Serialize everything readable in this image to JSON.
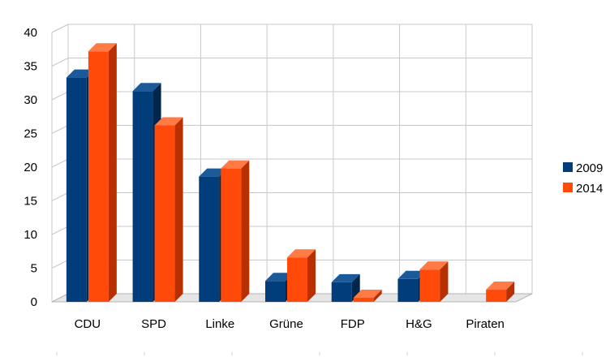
{
  "chart_data": {
    "type": "bar",
    "categories": [
      "CDU",
      "SPD",
      "Linke",
      "Grüne",
      "FDP",
      "H&G",
      "Piraten"
    ],
    "series": [
      {
        "name": "2009",
        "values": [
          33.3,
          31.3,
          18.6,
          3.1,
          2.9,
          3.4,
          0
        ],
        "color": "#003d7a"
      },
      {
        "name": "2014",
        "values": [
          37.2,
          26.2,
          19.8,
          6.6,
          0.6,
          4.8,
          1.8
        ],
        "color": "#ff4a0a"
      }
    ],
    "yticks": [
      0,
      5,
      10,
      15,
      20,
      25,
      30,
      35,
      40
    ],
    "ylim": [
      0,
      40
    ],
    "grid": true,
    "legend_position": "right",
    "style": "3d-bars"
  }
}
